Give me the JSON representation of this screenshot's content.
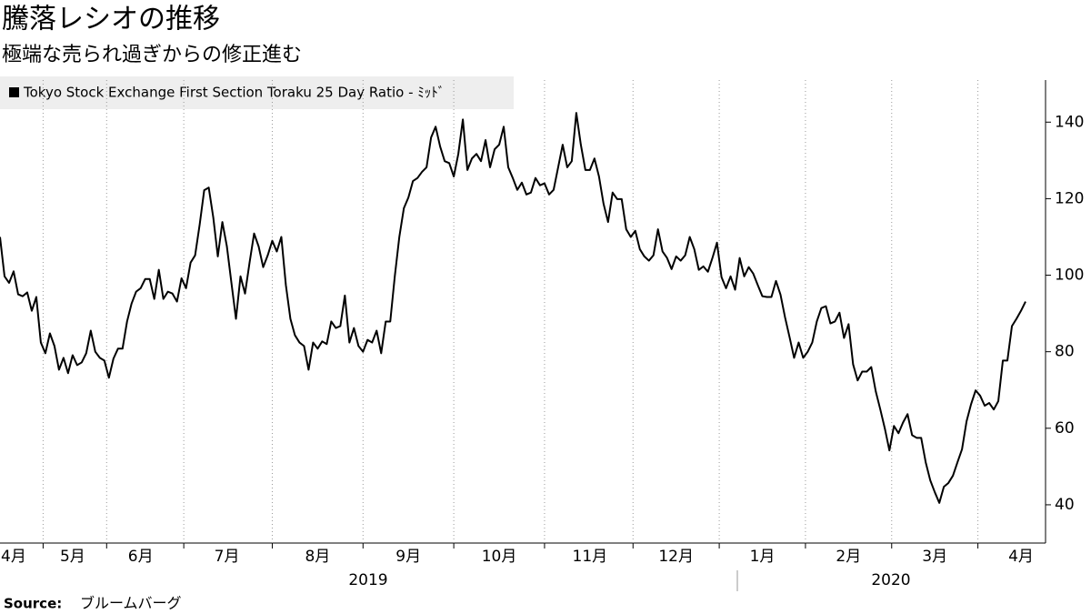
{
  "chart_data": {
    "type": "line",
    "title": "騰落レシオの推移",
    "subtitle": "極端な売られ過ぎからの修正進む",
    "source": {
      "label": "Source:",
      "text": "ブルームバーグ"
    },
    "legend_position": "top-left",
    "y_axis_side": "right",
    "ylim": [
      30,
      151
    ],
    "yticks": [
      40,
      60,
      80,
      100,
      120,
      140
    ],
    "year_labels": [
      "2019",
      "2020"
    ],
    "categories": [
      null,
      null,
      null,
      "4月",
      null,
      null,
      null,
      null,
      null,
      null,
      null,
      null,
      null,
      null,
      null,
      null,
      "5月",
      null,
      null,
      null,
      null,
      null,
      null,
      null,
      null,
      null,
      null,
      null,
      null,
      null,
      null,
      "6月",
      null,
      null,
      null,
      null,
      null,
      null,
      null,
      null,
      null,
      null,
      null,
      null,
      null,
      null,
      null,
      null,
      null,
      null,
      "7月",
      null,
      null,
      null,
      null,
      null,
      null,
      null,
      null,
      null,
      null,
      null,
      null,
      null,
      null,
      null,
      null,
      null,
      null,
      null,
      "8月",
      null,
      null,
      null,
      null,
      null,
      null,
      null,
      null,
      null,
      null,
      null,
      null,
      null,
      null,
      null,
      null,
      null,
      null,
      null,
      "9月",
      null,
      null,
      null,
      null,
      null,
      null,
      null,
      null,
      null,
      null,
      null,
      null,
      null,
      null,
      null,
      null,
      null,
      null,
      null,
      "10月",
      null,
      null,
      null,
      null,
      null,
      null,
      null,
      null,
      null,
      null,
      null,
      null,
      null,
      null,
      null,
      null,
      null,
      null,
      null,
      "11月",
      null,
      null,
      null,
      null,
      null,
      null,
      null,
      null,
      null,
      null,
      null,
      null,
      null,
      null,
      null,
      null,
      null,
      null,
      "12月",
      null,
      null,
      null,
      null,
      null,
      null,
      null,
      null,
      null,
      null,
      null,
      null,
      null,
      null,
      null,
      null,
      null,
      null,
      "1月",
      null,
      null,
      null,
      null,
      null,
      null,
      null,
      null,
      null,
      null,
      null,
      null,
      null,
      null,
      null,
      null,
      null,
      null,
      "2月",
      null,
      null,
      null,
      null,
      null,
      null,
      null,
      null,
      null,
      null,
      null,
      null,
      null,
      null,
      null,
      null,
      null,
      null,
      "3月",
      null,
      null,
      null,
      null,
      null,
      null,
      null,
      null,
      null,
      null,
      null,
      null,
      null,
      null,
      null,
      null,
      null,
      null,
      "4月",
      null
    ],
    "series": [
      {
        "name": "Tokyo Stock Exchange First Section Toraku 25 Day Ratio - ﾐｯﾄﾞ",
        "color": "#000000",
        "values": [
          110,
          99.7,
          98,
          101,
          95,
          94.5,
          95.5,
          90.7,
          94.3,
          82.4,
          79.6,
          84.8,
          81.5,
          75.3,
          78.4,
          74.4,
          79.1,
          76.5,
          77.2,
          79.6,
          85.5,
          80,
          78.4,
          77.7,
          73.2,
          78.2,
          80.8,
          80.8,
          87.9,
          92.6,
          95.7,
          96.6,
          99,
          99,
          93.8,
          101.4,
          93.8,
          95.7,
          95.2,
          93.1,
          99.2,
          96.6,
          103.3,
          105.2,
          113.2,
          122.2,
          122.9,
          115.1,
          104.9,
          113.9,
          107.5,
          98,
          88.6,
          99.7,
          95.2,
          103.3,
          110.9,
          107.5,
          102.1,
          105.2,
          109,
          106.2,
          110,
          97.4,
          88.6,
          84.3,
          82.4,
          81.5,
          75.3,
          82.4,
          80.8,
          82.7,
          82,
          87.9,
          86.2,
          86.7,
          94.7,
          82.4,
          86.2,
          81.5,
          80,
          83.1,
          82.4,
          85.5,
          79.6,
          87.9,
          87.9,
          99.7,
          110,
          117.5,
          120.3,
          124.6,
          125.4,
          127,
          128.2,
          136,
          138.8,
          133.6,
          129.8,
          129.3,
          125.8,
          131.7,
          140.7,
          127.5,
          130.5,
          131.7,
          129.8,
          135.3,
          128.2,
          132.9,
          134.1,
          138.8,
          128.2,
          125.4,
          122.3,
          124.2,
          121.1,
          121.6,
          125.4,
          123.5,
          124,
          121.1,
          122.3,
          128.2,
          134.1,
          128.2,
          129.8,
          142.4,
          134.1,
          127.5,
          127.5,
          130.5,
          125.8,
          118.7,
          113.9,
          121.6,
          119.9,
          119.9,
          112,
          110,
          111.6,
          106.8,
          104.9,
          103.8,
          105.2,
          112,
          106.2,
          104.5,
          101.6,
          104.9,
          103.8,
          105.2,
          110,
          106.8,
          101.4,
          102.3,
          100.9,
          104.5,
          108.5,
          99.5,
          96.6,
          99.7,
          96.2,
          104.5,
          99.7,
          102.1,
          100.4,
          97.4,
          94.5,
          94.3,
          94.3,
          98.5,
          94.9,
          89,
          83.8,
          78.4,
          82.4,
          78.4,
          80,
          82.4,
          87.9,
          91.4,
          91.9,
          87.4,
          87.9,
          90.2,
          83.6,
          87.2,
          76.7,
          72.5,
          74.8,
          74.8,
          76,
          69.6,
          64.9,
          59.9,
          54.2,
          60.6,
          58.7,
          61.5,
          63.7,
          58.2,
          57.5,
          57.5,
          51.1,
          46.4,
          43.3,
          40.5,
          44.7,
          45.7,
          47.6,
          51.1,
          54.5,
          61.8,
          66.3,
          69.9,
          68.5,
          65.9,
          66.6,
          64.9,
          67.1,
          77.7,
          77.7,
          86.7,
          88.6,
          90.7,
          93.1
        ]
      }
    ]
  }
}
